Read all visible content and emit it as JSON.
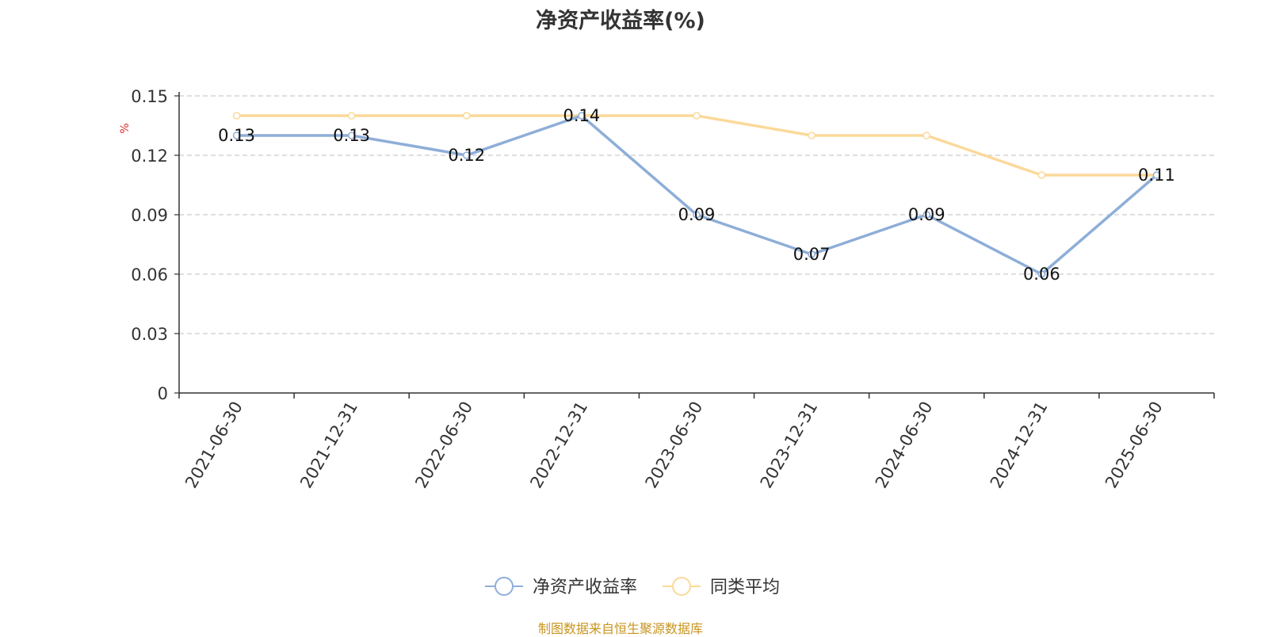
{
  "title": "净资产收益率(%)",
  "source_note": "制图数据来自恒生聚源数据库",
  "colors": {
    "series1": "#8eaed8",
    "series2": "#fbd99a",
    "axis": "#333333",
    "grid": "#cccccc",
    "unit": "#e03030"
  },
  "chart_data": {
    "type": "line",
    "title": "净资产收益率(%)",
    "ylabel": "%",
    "xlabel": "",
    "ylim": [
      0,
      0.15
    ],
    "yticks": [
      "0",
      "0.03",
      "0.06",
      "0.09",
      "0.12",
      "0.15"
    ],
    "ytick_values": [
      0,
      0.03,
      0.06,
      0.09,
      0.12,
      0.15
    ],
    "grid": true,
    "legend_position": "bottom-center",
    "categories": [
      "2021-06-30",
      "2021-12-31",
      "2022-06-30",
      "2022-12-31",
      "2023-06-30",
      "2023-12-31",
      "2024-06-30",
      "2024-12-31",
      "2025-06-30"
    ],
    "series": [
      {
        "name": "净资产收益率",
        "values": [
          0.13,
          0.13,
          0.12,
          0.14,
          0.09,
          0.07,
          0.09,
          0.06,
          0.11
        ],
        "labels": [
          "0.13",
          "0.13",
          "0.12",
          "0.14",
          "0.09",
          "0.07",
          "0.09",
          "0.06",
          "0.11"
        ],
        "show_labels": true,
        "color": "#8eaed8"
      },
      {
        "name": "同类平均",
        "values": [
          0.14,
          0.14,
          0.14,
          0.14,
          0.14,
          0.13,
          0.13,
          0.11,
          0.11
        ],
        "show_labels": false,
        "color": "#fbd99a"
      }
    ]
  }
}
